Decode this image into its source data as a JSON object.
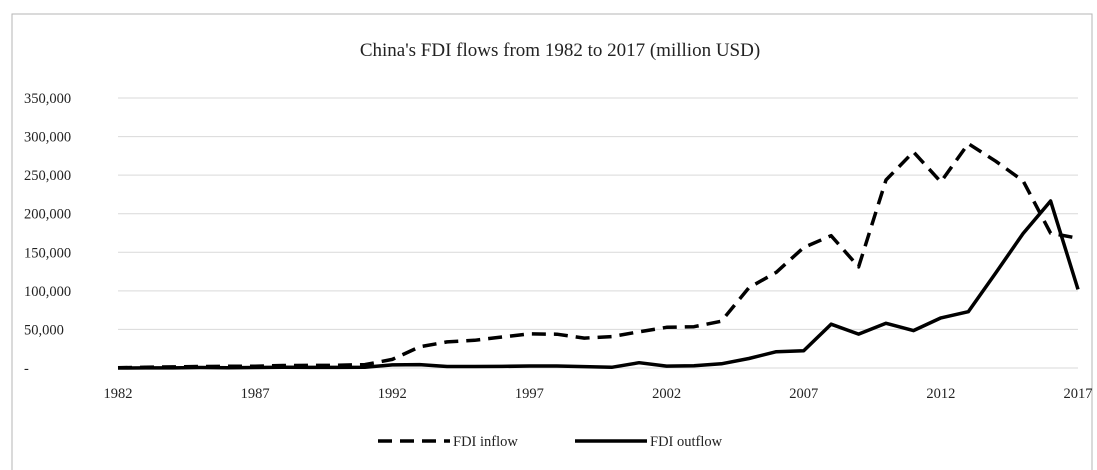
{
  "chart_data": {
    "type": "line",
    "title": "China's FDI flows from 1982 to 2017 (million USD)",
    "xlabel": "",
    "ylabel": "",
    "x": [
      1982,
      1983,
      1984,
      1985,
      1986,
      1987,
      1988,
      1989,
      1990,
      1991,
      1992,
      1993,
      1994,
      1995,
      1996,
      1997,
      1998,
      1999,
      2000,
      2001,
      2002,
      2003,
      2004,
      2005,
      2006,
      2007,
      2008,
      2009,
      2010,
      2011,
      2012,
      2013,
      2014,
      2015,
      2016,
      2017
    ],
    "x_ticks": [
      "1982",
      "1987",
      "1992",
      "1997",
      "2002",
      "2007",
      "2012",
      "2017"
    ],
    "y_ticks": [
      "-",
      "50,000",
      "100,000",
      "150,000",
      "200,000",
      "250,000",
      "300,000",
      "350,000"
    ],
    "ylim": [
      0,
      350000
    ],
    "grid": true,
    "legend_position": "bottom",
    "series": [
      {
        "name": "FDI inflow",
        "style": "dashed",
        "color": "#000000",
        "values": [
          430,
          916,
          1419,
          1956,
          2244,
          2314,
          3194,
          3393,
          3487,
          4366,
          11156,
          27515,
          33787,
          35849,
          40180,
          44237,
          43751,
          38753,
          40715,
          46878,
          52743,
          53505,
          60630,
          104109,
          124082,
          156249,
          171535,
          131057,
          243703,
          280072,
          241214,
          290928,
          268097,
          242489,
          174750,
          168224
        ]
      },
      {
        "name": "FDI outflow",
        "style": "solid",
        "color": "#000000",
        "values": [
          44,
          93,
          134,
          629,
          450,
          645,
          850,
          780,
          830,
          913,
          4000,
          4400,
          2000,
          2000,
          2114,
          2563,
          2634,
          1775,
          916,
          6885,
          2518,
          2855,
          5498,
          12261,
          21160,
          22469,
          56742,
          43890,
          57954,
          48421,
          64963,
          72971,
          123120,
          174391,
          216424,
          101914
        ]
      }
    ]
  }
}
